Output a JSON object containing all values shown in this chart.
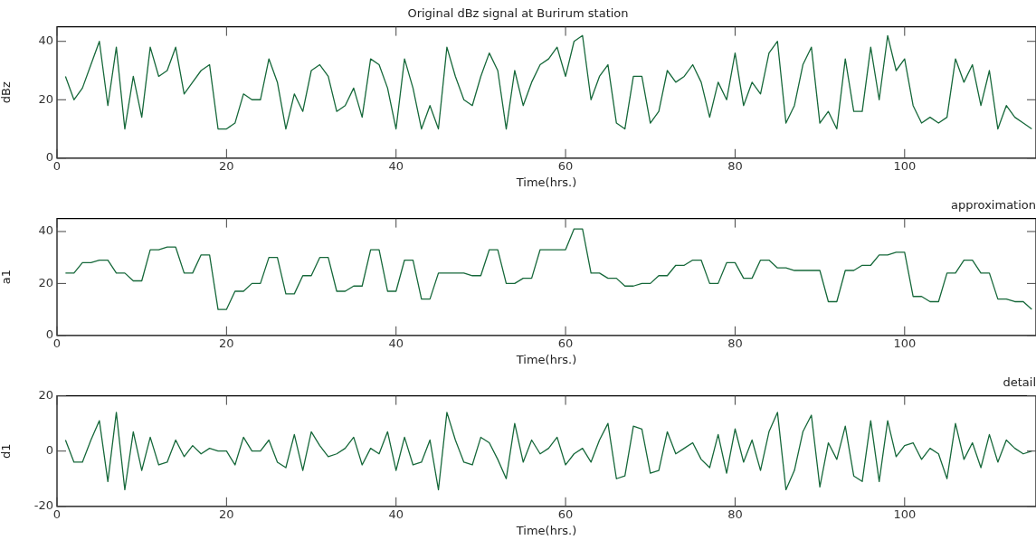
{
  "chart_data": [
    {
      "type": "line",
      "title": "Original dBz signal at Burirum station",
      "xlabel": "Time(hrs.)",
      "ylabel": "dBz",
      "xlim": [
        0,
        115.5
      ],
      "xticks": [
        0,
        20,
        40,
        60,
        80,
        100
      ],
      "ylim": [
        0,
        45
      ],
      "yticks": [
        0,
        20,
        40
      ],
      "grid": false,
      "legend": false,
      "marker": "none",
      "line_style": "solid",
      "x": [
        1,
        2,
        3,
        4,
        5,
        6,
        7,
        8,
        9,
        10,
        11,
        12,
        13,
        14,
        15,
        16,
        17,
        18,
        19,
        20,
        21,
        22,
        23,
        24,
        25,
        26,
        27,
        28,
        29,
        30,
        31,
        32,
        33,
        34,
        35,
        36,
        37,
        38,
        39,
        40,
        41,
        42,
        43,
        44,
        45,
        46,
        47,
        48,
        49,
        50,
        51,
        52,
        53,
        54,
        55,
        56,
        57,
        58,
        59,
        60,
        61,
        62,
        63,
        64,
        65,
        66,
        67,
        68,
        69,
        70,
        71,
        72,
        73,
        74,
        75,
        76,
        77,
        78,
        79,
        80,
        81,
        82,
        83,
        84,
        85,
        86,
        87,
        88,
        89,
        90,
        91,
        92,
        93,
        94,
        95,
        96,
        97,
        98,
        99,
        100,
        101,
        102,
        103,
        104,
        105,
        106,
        107,
        108,
        109,
        110,
        111,
        112,
        113,
        114,
        115
      ],
      "series": [
        {
          "color": "#16683a",
          "values": [
            28,
            20,
            24,
            32,
            40,
            18,
            38,
            10,
            28,
            14,
            38,
            28,
            30,
            38,
            22,
            26,
            30,
            32,
            10,
            10,
            12,
            22,
            20,
            20,
            34,
            26,
            10,
            22,
            16,
            30,
            32,
            28,
            16,
            18,
            24,
            14,
            34,
            32,
            24,
            10,
            34,
            24,
            10,
            18,
            10,
            38,
            28,
            20,
            18,
            28,
            36,
            30,
            10,
            30,
            18,
            26,
            32,
            34,
            38,
            28,
            40,
            42,
            20,
            28,
            32,
            12,
            10,
            28,
            28,
            12,
            16,
            30,
            26,
            28,
            32,
            26,
            14,
            26,
            20,
            36,
            18,
            26,
            22,
            36,
            40,
            12,
            18,
            32,
            38,
            12,
            16,
            10,
            34,
            16,
            16,
            38,
            20,
            42,
            30,
            34,
            18,
            12,
            14,
            12,
            14,
            34,
            26,
            32,
            18,
            30,
            10,
            18,
            14,
            12,
            10
          ]
        }
      ]
    },
    {
      "type": "line",
      "title": "approximation",
      "xlabel": "Time(hrs.)",
      "ylabel": "a1",
      "xlim": [
        0,
        115.5
      ],
      "xticks": [
        0,
        20,
        40,
        60,
        80,
        100
      ],
      "ylim": [
        0,
        45
      ],
      "yticks": [
        0,
        20,
        40
      ],
      "grid": false,
      "legend": false,
      "marker": "none",
      "line_style": "solid",
      "x": [
        1,
        2,
        3,
        4,
        5,
        6,
        7,
        8,
        9,
        10,
        11,
        12,
        13,
        14,
        15,
        16,
        17,
        18,
        19,
        20,
        21,
        22,
        23,
        24,
        25,
        26,
        27,
        28,
        29,
        30,
        31,
        32,
        33,
        34,
        35,
        36,
        37,
        38,
        39,
        40,
        41,
        42,
        43,
        44,
        45,
        46,
        47,
        48,
        49,
        50,
        51,
        52,
        53,
        54,
        55,
        56,
        57,
        58,
        59,
        60,
        61,
        62,
        63,
        64,
        65,
        66,
        67,
        68,
        69,
        70,
        71,
        72,
        73,
        74,
        75,
        76,
        77,
        78,
        79,
        80,
        81,
        82,
        83,
        84,
        85,
        86,
        87,
        88,
        89,
        90,
        91,
        92,
        93,
        94,
        95,
        96,
        97,
        98,
        99,
        100,
        101,
        102,
        103,
        104,
        105,
        106,
        107,
        108,
        109,
        110,
        111,
        112,
        113,
        114,
        115
      ],
      "series": [
        {
          "color": "#16683a",
          "values": [
            24,
            24,
            28,
            28,
            29,
            29,
            24,
            24,
            21,
            21,
            33,
            33,
            34,
            34,
            24,
            24,
            31,
            31,
            10,
            10,
            17,
            17,
            20,
            20,
            30,
            30,
            16,
            16,
            23,
            23,
            30,
            30,
            17,
            17,
            19,
            19,
            33,
            33,
            17,
            17,
            29,
            29,
            14,
            14,
            24,
            24,
            24,
            24,
            23,
            23,
            33,
            33,
            20,
            20,
            22,
            22,
            33,
            33,
            33,
            33,
            41,
            41,
            24,
            24,
            22,
            22,
            19,
            19,
            20,
            20,
            23,
            23,
            27,
            27,
            29,
            29,
            20,
            20,
            28,
            28,
            22,
            22,
            29,
            29,
            26,
            26,
            25,
            25,
            25,
            25,
            13,
            13,
            25,
            25,
            27,
            27,
            31,
            31,
            32,
            32,
            15,
            15,
            13,
            13,
            24,
            24,
            29,
            29,
            24,
            24,
            14,
            14,
            13,
            13,
            10
          ]
        }
      ]
    },
    {
      "type": "line",
      "title": "detail",
      "xlabel": "Time(hrs.)",
      "ylabel": "d1",
      "xlim": [
        0,
        115.5
      ],
      "xticks": [
        0,
        20,
        40,
        60,
        80,
        100
      ],
      "ylim": [
        -20,
        20
      ],
      "yticks": [
        -20,
        0,
        20
      ],
      "grid": false,
      "legend": false,
      "marker": "none",
      "line_style": "solid",
      "x": [
        1,
        2,
        3,
        4,
        5,
        6,
        7,
        8,
        9,
        10,
        11,
        12,
        13,
        14,
        15,
        16,
        17,
        18,
        19,
        20,
        21,
        22,
        23,
        24,
        25,
        26,
        27,
        28,
        29,
        30,
        31,
        32,
        33,
        34,
        35,
        36,
        37,
        38,
        39,
        40,
        41,
        42,
        43,
        44,
        45,
        46,
        47,
        48,
        49,
        50,
        51,
        52,
        53,
        54,
        55,
        56,
        57,
        58,
        59,
        60,
        61,
        62,
        63,
        64,
        65,
        66,
        67,
        68,
        69,
        70,
        71,
        72,
        73,
        74,
        75,
        76,
        77,
        78,
        79,
        80,
        81,
        82,
        83,
        84,
        85,
        86,
        87,
        88,
        89,
        90,
        91,
        92,
        93,
        94,
        95,
        96,
        97,
        98,
        99,
        100,
        101,
        102,
        103,
        104,
        105,
        106,
        107,
        108,
        109,
        110,
        111,
        112,
        113,
        114,
        115
      ],
      "series": [
        {
          "color": "#16683a",
          "values": [
            4,
            -4,
            -4,
            4,
            11,
            -11,
            14,
            -14,
            7,
            -7,
            5,
            -5,
            -4,
            4,
            -2,
            2,
            -1,
            1,
            0,
            0,
            -5,
            5,
            0,
            0,
            4,
            -4,
            -6,
            6,
            -7,
            7,
            2,
            -2,
            -1,
            1,
            5,
            -5,
            1,
            -1,
            7,
            -7,
            5,
            -5,
            -4,
            4,
            -14,
            14,
            4,
            -4,
            -5,
            5,
            3,
            -3,
            -10,
            10,
            -4,
            4,
            -1,
            1,
            5,
            -5,
            -1,
            1,
            -4,
            4,
            10,
            -10,
            -9,
            9,
            8,
            -8,
            -7,
            7,
            -1,
            1,
            3,
            -3,
            -6,
            6,
            -8,
            8,
            -4,
            4,
            -7,
            7,
            14,
            -14,
            -7,
            7,
            13,
            -13,
            3,
            -3,
            9,
            -9,
            -11,
            11,
            -11,
            11,
            -2,
            2,
            3,
            -3,
            1,
            -1,
            -10,
            10,
            -3,
            3,
            -6,
            6,
            -4,
            4,
            1,
            -1,
            0
          ]
        }
      ]
    }
  ]
}
